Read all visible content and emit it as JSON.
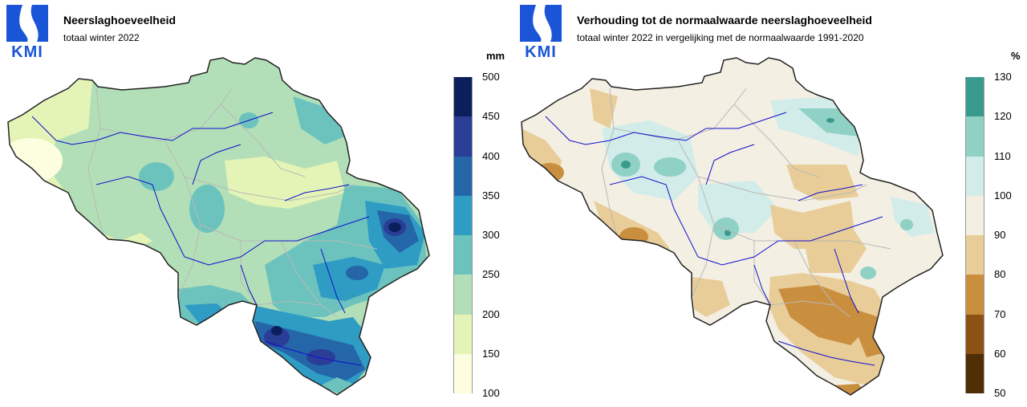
{
  "logo": {
    "text": "KMI",
    "color": "#1a55d8"
  },
  "left_panel": {
    "title": "Neerslaghoeveelheid",
    "subtitle": "totaal winter 2022",
    "unit": "mm",
    "legend_ticks": [
      "500",
      "450",
      "400",
      "350",
      "300",
      "250",
      "200",
      "150",
      "100"
    ],
    "legend_colors": [
      "#0a1f5c",
      "#2a3d97",
      "#2566a8",
      "#2f9cc4",
      "#6cc3be",
      "#b2dfb8",
      "#e4f4b6",
      "#fdfde0"
    ],
    "map_zones": [
      {
        "name": "west-coastal-low",
        "class_color": "#e4f4b6"
      },
      {
        "name": "central-plain",
        "class_color": "#b2dfb8"
      },
      {
        "name": "east-highland",
        "class_color": "#6cc3be"
      },
      {
        "name": "ardennes-high",
        "class_color": "#2f9cc4"
      },
      {
        "name": "high-fagnes-peak",
        "class_color": "#2a3d97"
      },
      {
        "name": "gaume-peak",
        "class_color": "#0a1f5c"
      }
    ]
  },
  "right_panel": {
    "title": "Verhouding tot de normaalwaarde neerslaghoeveelheid",
    "subtitle": "totaal winter 2022 in vergelijking met de normaalwaarde 1991-2020",
    "unit": "%",
    "legend_ticks": [
      "130",
      "120",
      "110",
      "100",
      "90",
      "80",
      "70",
      "60",
      "50"
    ],
    "legend_colors": [
      "#3a9a8e",
      "#8fd1c4",
      "#d2ecea",
      "#f4efe3",
      "#e8cd99",
      "#c98f3f",
      "#8c5114",
      "#4f2e06"
    ],
    "map_zones": [
      {
        "name": "near-normal",
        "class_color": "#f4efe3"
      },
      {
        "name": "above-normal",
        "class_color": "#d2ecea"
      },
      {
        "name": "well-above-normal",
        "class_color": "#8fd1c4"
      },
      {
        "name": "below-normal",
        "class_color": "#e8cd99"
      },
      {
        "name": "well-below-normal",
        "class_color": "#c98f3f"
      }
    ]
  }
}
